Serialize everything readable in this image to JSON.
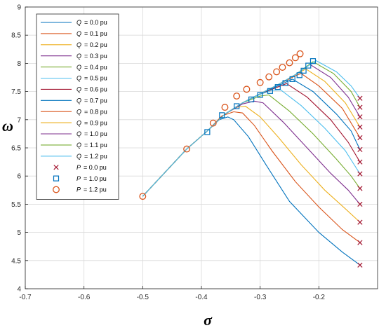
{
  "chart_data": {
    "type": "line",
    "xlabel": "σ",
    "ylabel": "ω",
    "xlim": [
      -0.7,
      -0.1
    ],
    "ylim": [
      4,
      9
    ],
    "xticks": [
      "-0.7",
      "-0.6",
      "-0.5",
      "-0.4",
      "-0.3",
      "-0.2"
    ],
    "yticks": [
      "4",
      "4.5",
      "5",
      "5.5",
      "6",
      "6.5",
      "7",
      "7.5",
      "8",
      "8.5",
      "9"
    ],
    "grid": true,
    "legend_placement": "top-left",
    "series": [
      {
        "name_var": "Q",
        "name_value": "= 0.0 pu",
        "color": "#0072BD",
        "points": [
          [
            -0.5,
            5.64
          ],
          [
            -0.425,
            6.48
          ],
          [
            -0.39,
            6.8
          ],
          [
            -0.37,
            7.0
          ],
          [
            -0.355,
            7.05
          ],
          [
            -0.345,
            7.0
          ],
          [
            -0.32,
            6.7
          ],
          [
            -0.29,
            6.2
          ],
          [
            -0.25,
            5.55
          ],
          [
            -0.2,
            5.0
          ],
          [
            -0.16,
            4.65
          ],
          [
            -0.13,
            4.42
          ]
        ]
      },
      {
        "name_var": "Q",
        "name_value": "= 0.1 pu",
        "color": "#D95319",
        "points": [
          [
            -0.5,
            5.64
          ],
          [
            -0.425,
            6.48
          ],
          [
            -0.39,
            6.8
          ],
          [
            -0.365,
            7.07
          ],
          [
            -0.345,
            7.14
          ],
          [
            -0.33,
            7.12
          ],
          [
            -0.31,
            6.9
          ],
          [
            -0.28,
            6.45
          ],
          [
            -0.24,
            5.9
          ],
          [
            -0.2,
            5.45
          ],
          [
            -0.16,
            5.05
          ],
          [
            -0.13,
            4.82
          ]
        ]
      },
      {
        "name_var": "Q",
        "name_value": "= 0.2 pu",
        "color": "#EDB120",
        "points": [
          [
            -0.5,
            5.64
          ],
          [
            -0.425,
            6.48
          ],
          [
            -0.39,
            6.8
          ],
          [
            -0.36,
            7.1
          ],
          [
            -0.34,
            7.22
          ],
          [
            -0.325,
            7.24
          ],
          [
            -0.3,
            7.05
          ],
          [
            -0.27,
            6.7
          ],
          [
            -0.23,
            6.2
          ],
          [
            -0.19,
            5.75
          ],
          [
            -0.155,
            5.42
          ],
          [
            -0.13,
            5.18
          ]
        ]
      },
      {
        "name_var": "Q",
        "name_value": "= 0.3 pu",
        "color": "#7E2F8E",
        "points": [
          [
            -0.5,
            5.64
          ],
          [
            -0.425,
            6.48
          ],
          [
            -0.39,
            6.8
          ],
          [
            -0.36,
            7.1
          ],
          [
            -0.33,
            7.28
          ],
          [
            -0.31,
            7.33
          ],
          [
            -0.295,
            7.3
          ],
          [
            -0.26,
            6.95
          ],
          [
            -0.22,
            6.5
          ],
          [
            -0.18,
            6.05
          ],
          [
            -0.15,
            5.75
          ],
          [
            -0.13,
            5.5
          ]
        ]
      },
      {
        "name_var": "Q",
        "name_value": "= 0.4 pu",
        "color": "#77AC30",
        "points": [
          [
            -0.5,
            5.64
          ],
          [
            -0.425,
            6.48
          ],
          [
            -0.39,
            6.8
          ],
          [
            -0.36,
            7.1
          ],
          [
            -0.33,
            7.3
          ],
          [
            -0.3,
            7.42
          ],
          [
            -0.285,
            7.44
          ],
          [
            -0.25,
            7.15
          ],
          [
            -0.21,
            6.75
          ],
          [
            -0.17,
            6.3
          ],
          [
            -0.145,
            6.0
          ],
          [
            -0.13,
            5.78
          ]
        ]
      },
      {
        "name_var": "Q",
        "name_value": "= 0.5 pu",
        "color": "#4DBEEE",
        "points": [
          [
            -0.5,
            5.64
          ],
          [
            -0.425,
            6.48
          ],
          [
            -0.39,
            6.8
          ],
          [
            -0.36,
            7.1
          ],
          [
            -0.33,
            7.3
          ],
          [
            -0.3,
            7.45
          ],
          [
            -0.28,
            7.52
          ],
          [
            -0.265,
            7.53
          ],
          [
            -0.23,
            7.25
          ],
          [
            -0.19,
            6.85
          ],
          [
            -0.155,
            6.45
          ],
          [
            -0.13,
            6.04
          ]
        ]
      },
      {
        "name_var": "Q",
        "name_value": "= 0.6 pu",
        "color": "#A2142F",
        "points": [
          [
            -0.5,
            5.64
          ],
          [
            -0.425,
            6.48
          ],
          [
            -0.39,
            6.8
          ],
          [
            -0.36,
            7.1
          ],
          [
            -0.33,
            7.3
          ],
          [
            -0.3,
            7.46
          ],
          [
            -0.27,
            7.58
          ],
          [
            -0.255,
            7.64
          ],
          [
            -0.22,
            7.4
          ],
          [
            -0.18,
            7.0
          ],
          [
            -0.15,
            6.6
          ],
          [
            -0.13,
            6.25
          ]
        ]
      },
      {
        "name_var": "Q",
        "name_value": "= 0.7 pu",
        "color": "#0072BD",
        "points": [
          [
            -0.5,
            5.64
          ],
          [
            -0.425,
            6.48
          ],
          [
            -0.39,
            6.8
          ],
          [
            -0.36,
            7.1
          ],
          [
            -0.33,
            7.3
          ],
          [
            -0.3,
            7.46
          ],
          [
            -0.27,
            7.6
          ],
          [
            -0.245,
            7.72
          ],
          [
            -0.21,
            7.5
          ],
          [
            -0.17,
            7.1
          ],
          [
            -0.145,
            6.8
          ],
          [
            -0.13,
            6.47
          ]
        ]
      },
      {
        "name_var": "Q",
        "name_value": "= 0.8 pu",
        "color": "#D95319",
        "points": [
          [
            -0.5,
            5.64
          ],
          [
            -0.425,
            6.48
          ],
          [
            -0.39,
            6.8
          ],
          [
            -0.36,
            7.1
          ],
          [
            -0.33,
            7.3
          ],
          [
            -0.3,
            7.46
          ],
          [
            -0.27,
            7.62
          ],
          [
            -0.24,
            7.78
          ],
          [
            -0.23,
            7.82
          ],
          [
            -0.2,
            7.6
          ],
          [
            -0.16,
            7.2
          ],
          [
            -0.13,
            6.68
          ]
        ]
      },
      {
        "name_var": "Q",
        "name_value": "= 0.9 pu",
        "color": "#EDB120",
        "points": [
          [
            -0.5,
            5.64
          ],
          [
            -0.425,
            6.48
          ],
          [
            -0.39,
            6.8
          ],
          [
            -0.36,
            7.1
          ],
          [
            -0.33,
            7.3
          ],
          [
            -0.3,
            7.46
          ],
          [
            -0.27,
            7.62
          ],
          [
            -0.24,
            7.8
          ],
          [
            -0.222,
            7.9
          ],
          [
            -0.19,
            7.68
          ],
          [
            -0.155,
            7.3
          ],
          [
            -0.13,
            6.87
          ]
        ]
      },
      {
        "name_var": "Q",
        "name_value": "= 1.0 pu",
        "color": "#7E2F8E",
        "points": [
          [
            -0.5,
            5.64
          ],
          [
            -0.425,
            6.48
          ],
          [
            -0.39,
            6.8
          ],
          [
            -0.36,
            7.1
          ],
          [
            -0.33,
            7.3
          ],
          [
            -0.3,
            7.46
          ],
          [
            -0.27,
            7.62
          ],
          [
            -0.24,
            7.8
          ],
          [
            -0.215,
            7.98
          ],
          [
            -0.18,
            7.75
          ],
          [
            -0.15,
            7.4
          ],
          [
            -0.13,
            7.05
          ]
        ]
      },
      {
        "name_var": "Q",
        "name_value": "= 1.1 pu",
        "color": "#77AC30",
        "points": [
          [
            -0.5,
            5.64
          ],
          [
            -0.425,
            6.48
          ],
          [
            -0.39,
            6.8
          ],
          [
            -0.36,
            7.1
          ],
          [
            -0.33,
            7.3
          ],
          [
            -0.3,
            7.46
          ],
          [
            -0.27,
            7.62
          ],
          [
            -0.24,
            7.8
          ],
          [
            -0.21,
            8.03
          ],
          [
            -0.175,
            7.82
          ],
          [
            -0.145,
            7.5
          ],
          [
            -0.13,
            7.22
          ]
        ]
      },
      {
        "name_var": "Q",
        "name_value": "= 1.2 pu",
        "color": "#4DBEEE",
        "points": [
          [
            -0.5,
            5.64
          ],
          [
            -0.425,
            6.48
          ],
          [
            -0.39,
            6.8
          ],
          [
            -0.36,
            7.1
          ],
          [
            -0.33,
            7.3
          ],
          [
            -0.3,
            7.46
          ],
          [
            -0.27,
            7.62
          ],
          [
            -0.24,
            7.8
          ],
          [
            -0.205,
            8.05
          ],
          [
            -0.17,
            7.85
          ],
          [
            -0.145,
            7.6
          ],
          [
            -0.13,
            7.38
          ]
        ]
      }
    ],
    "markers": [
      {
        "name_var": "P",
        "name_value": "= 0.0 pu",
        "shape": "x",
        "color": "#A2142F",
        "points": [
          [
            -0.13,
            4.42
          ],
          [
            -0.13,
            4.82
          ],
          [
            -0.13,
            5.18
          ],
          [
            -0.13,
            5.5
          ],
          [
            -0.13,
            5.78
          ],
          [
            -0.13,
            6.04
          ],
          [
            -0.13,
            6.25
          ],
          [
            -0.13,
            6.47
          ],
          [
            -0.13,
            6.68
          ],
          [
            -0.13,
            6.87
          ],
          [
            -0.13,
            7.05
          ],
          [
            -0.13,
            7.22
          ],
          [
            -0.13,
            7.38
          ]
        ]
      },
      {
        "name_var": "P",
        "name_value": "= 1.0 pu",
        "shape": "square",
        "color": "#0072BD",
        "points": [
          [
            -0.39,
            6.78
          ],
          [
            -0.365,
            7.08
          ],
          [
            -0.34,
            7.24
          ],
          [
            -0.315,
            7.36
          ],
          [
            -0.3,
            7.44
          ],
          [
            -0.283,
            7.51
          ],
          [
            -0.27,
            7.58
          ],
          [
            -0.257,
            7.65
          ],
          [
            -0.245,
            7.72
          ],
          [
            -0.233,
            7.79
          ],
          [
            -0.226,
            7.87
          ],
          [
            -0.218,
            7.96
          ],
          [
            -0.21,
            8.04
          ]
        ]
      },
      {
        "name_var": "P",
        "name_value": "= 1.2 pu",
        "shape": "circle",
        "color": "#D95319",
        "points": [
          [
            -0.5,
            5.64
          ],
          [
            -0.425,
            6.48
          ],
          [
            -0.38,
            6.94
          ],
          [
            -0.36,
            7.22
          ],
          [
            -0.34,
            7.42
          ],
          [
            -0.323,
            7.54
          ],
          [
            -0.3,
            7.66
          ],
          [
            -0.285,
            7.76
          ],
          [
            -0.272,
            7.85
          ],
          [
            -0.262,
            7.93
          ],
          [
            -0.25,
            8.01
          ],
          [
            -0.24,
            8.1
          ],
          [
            -0.232,
            8.17
          ]
        ]
      }
    ]
  }
}
